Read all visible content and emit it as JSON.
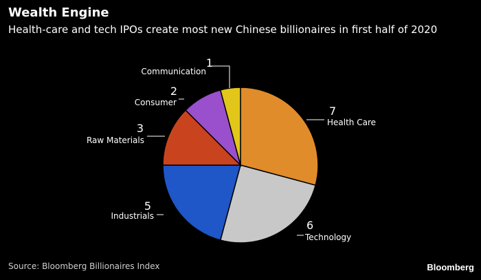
{
  "title": "Wealth Engine",
  "subtitle": "Health-care and tech IPOs create most new Chinese billionaires in first half of 2020",
  "source": "Source: Bloomberg Billionaires Index",
  "brand": "Bloomberg",
  "chart_data": {
    "type": "pie",
    "slices": [
      {
        "label": "Health Care",
        "value": 7,
        "color": "#e08c2a"
      },
      {
        "label": "Technology",
        "value": 6,
        "color": "#c8c8c8"
      },
      {
        "label": "Industrials",
        "value": 5,
        "color": "#1f56c8"
      },
      {
        "label": "Raw Materials",
        "value": 3,
        "color": "#c9441e"
      },
      {
        "label": "Consumer",
        "value": 2,
        "color": "#9a4fcc"
      },
      {
        "label": "Communication",
        "value": 1,
        "color": "#e2c619"
      }
    ]
  }
}
